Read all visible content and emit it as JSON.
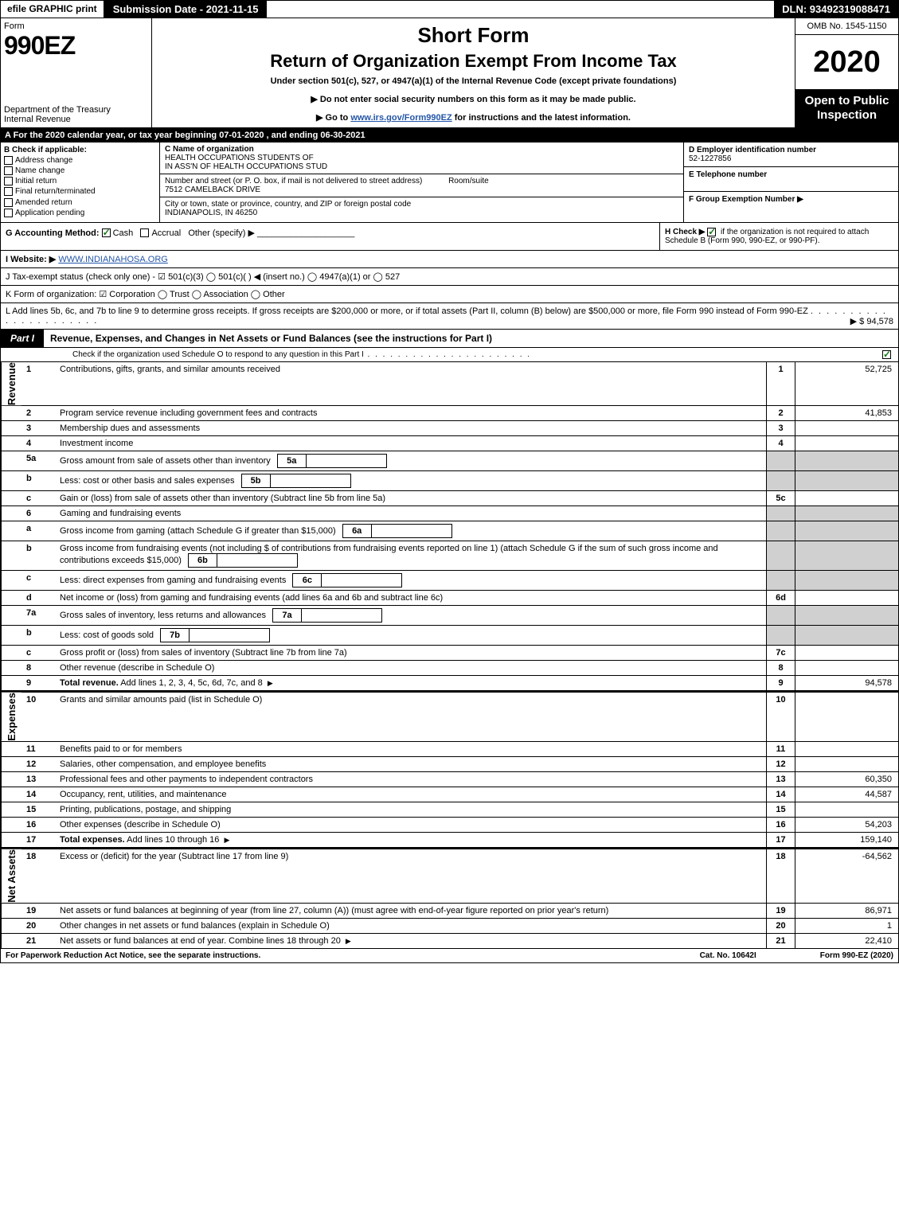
{
  "top": {
    "print": "efile GRAPHIC print",
    "sub_date": "Submission Date - 2021-11-15",
    "dln": "DLN: 93492319088471"
  },
  "header": {
    "form_word": "Form",
    "form_num": "990EZ",
    "dept": "Department of the Treasury",
    "irs": "Internal Revenue",
    "short": "Short Form",
    "title": "Return of Organization Exempt From Income Tax",
    "subtitle": "Under section 501(c), 527, or 4947(a)(1) of the Internal Revenue Code (except private foundations)",
    "instr1": "▶ Do not enter social security numbers on this form as it may be made public.",
    "instr2_pre": "▶ Go to ",
    "instr2_link": "www.irs.gov/Form990EZ",
    "instr2_post": " for instructions and the latest information.",
    "omb": "OMB No. 1545-1150",
    "year": "2020",
    "open": "Open to Public Inspection"
  },
  "rowA": "A   For the 2020 calendar year, or tax year beginning 07-01-2020 , and ending 06-30-2021",
  "colB": {
    "head": "B  Check if applicable:",
    "opts": [
      "Address change",
      "Name change",
      "Initial return",
      "Final return/terminated",
      "Amended return",
      "Application pending"
    ]
  },
  "colC": {
    "name_label": "C Name of organization",
    "name1": "HEALTH OCCUPATIONS STUDENTS OF",
    "name2": "IN ASS'N OF HEALTH OCCUPATIONS STUD",
    "addr_label": "Number and street (or P. O. box, if mail is not delivered to street address)",
    "room": "Room/suite",
    "addr": "7512 CAMELBACK DRIVE",
    "city_label": "City or town, state or province, country, and ZIP or foreign postal code",
    "city": "INDIANAPOLIS, IN   46250"
  },
  "colDEF": {
    "d_label": "D Employer identification number",
    "d_val": "52-1227856",
    "e_label": "E Telephone number",
    "f_label": "F Group Exemption Number   ▶"
  },
  "rowG": {
    "g": "G Accounting Method:",
    "cash": "Cash",
    "accrual": "Accrual",
    "other": "Other (specify) ▶",
    "h": "H   Check ▶",
    "h_text": "if the organization is not required to attach Schedule B (Form 990, 990-EZ, or 990-PF)."
  },
  "rowI": {
    "label": "I Website: ▶",
    "val": "WWW.INDIANAHOSA.ORG"
  },
  "rowJ": "J Tax-exempt status (check only one) -  ☑ 501(c)(3)  ◯ 501(c)(  ) ◀ (insert no.)  ◯ 4947(a)(1) or  ◯ 527",
  "rowK": "K Form of organization:   ☑ Corporation   ◯ Trust   ◯ Association   ◯ Other",
  "rowL": {
    "text": "L Add lines 5b, 6c, and 7b to line 9 to determine gross receipts. If gross receipts are $200,000 or more, or if total assets (Part II, column (B) below) are $500,000 or more, file Form 990 instead of Form 990-EZ",
    "val": "▶ $ 94,578"
  },
  "part1": {
    "tag": "Part I",
    "title": "Revenue, Expenses, and Changes in Net Assets or Fund Balances (see the instructions for Part I)",
    "sub": "Check if the organization used Schedule O to respond to any question in this Part I"
  },
  "sides": {
    "rev": "Revenue",
    "exp": "Expenses",
    "net": "Net Assets"
  },
  "lines": [
    {
      "n": "1",
      "d": "Contributions, gifts, grants, and similar amounts received",
      "r": "1",
      "a": "52,725"
    },
    {
      "n": "2",
      "d": "Program service revenue including government fees and contracts",
      "r": "2",
      "a": "41,853"
    },
    {
      "n": "3",
      "d": "Membership dues and assessments",
      "r": "3",
      "a": ""
    },
    {
      "n": "4",
      "d": "Investment income",
      "r": "4",
      "a": ""
    },
    {
      "n": "5a",
      "d": "Gross amount from sale of assets other than inventory",
      "ib": "5a",
      "grey": true
    },
    {
      "n": "b",
      "d": "Less: cost or other basis and sales expenses",
      "ib": "5b",
      "grey": true
    },
    {
      "n": "c",
      "d": "Gain or (loss) from sale of assets other than inventory (Subtract line 5b from line 5a)",
      "r": "5c",
      "a": ""
    },
    {
      "n": "6",
      "d": "Gaming and fundraising events",
      "grey": true
    },
    {
      "n": "a",
      "d": "Gross income from gaming (attach Schedule G if greater than $15,000)",
      "ib": "6a",
      "grey": true
    },
    {
      "n": "b",
      "d": "Gross income from fundraising events (not including $                       of contributions from fundraising events reported on line 1) (attach Schedule G if the sum of such gross income and contributions exceeds $15,000)",
      "ib": "6b",
      "grey": true
    },
    {
      "n": "c",
      "d": "Less: direct expenses from gaming and fundraising events",
      "ib": "6c",
      "grey": true
    },
    {
      "n": "d",
      "d": "Net income or (loss) from gaming and fundraising events (add lines 6a and 6b and subtract line 6c)",
      "r": "6d",
      "a": ""
    },
    {
      "n": "7a",
      "d": "Gross sales of inventory, less returns and allowances",
      "ib": "7a",
      "grey": true
    },
    {
      "n": "b",
      "d": "Less: cost of goods sold",
      "ib": "7b",
      "grey": true
    },
    {
      "n": "c",
      "d": "Gross profit or (loss) from sales of inventory (Subtract line 7b from line 7a)",
      "r": "7c",
      "a": ""
    },
    {
      "n": "8",
      "d": "Other revenue (describe in Schedule O)",
      "r": "8",
      "a": ""
    },
    {
      "n": "9",
      "d": "Total revenue. Add lines 1, 2, 3, 4, 5c, 6d, 7c, and 8",
      "r": "9",
      "a": "94,578",
      "bold": true,
      "arrow": true
    }
  ],
  "exp_lines": [
    {
      "n": "10",
      "d": "Grants and similar amounts paid (list in Schedule O)",
      "r": "10",
      "a": ""
    },
    {
      "n": "11",
      "d": "Benefits paid to or for members",
      "r": "11",
      "a": ""
    },
    {
      "n": "12",
      "d": "Salaries, other compensation, and employee benefits",
      "r": "12",
      "a": ""
    },
    {
      "n": "13",
      "d": "Professional fees and other payments to independent contractors",
      "r": "13",
      "a": "60,350"
    },
    {
      "n": "14",
      "d": "Occupancy, rent, utilities, and maintenance",
      "r": "14",
      "a": "44,587"
    },
    {
      "n": "15",
      "d": "Printing, publications, postage, and shipping",
      "r": "15",
      "a": ""
    },
    {
      "n": "16",
      "d": "Other expenses (describe in Schedule O)",
      "r": "16",
      "a": "54,203"
    },
    {
      "n": "17",
      "d": "Total expenses. Add lines 10 through 16",
      "r": "17",
      "a": "159,140",
      "bold": true,
      "arrow": true
    }
  ],
  "net_lines": [
    {
      "n": "18",
      "d": "Excess or (deficit) for the year (Subtract line 17 from line 9)",
      "r": "18",
      "a": "-64,562"
    },
    {
      "n": "19",
      "d": "Net assets or fund balances at beginning of year (from line 27, column (A)) (must agree with end-of-year figure reported on prior year's return)",
      "r": "19",
      "a": "86,971"
    },
    {
      "n": "20",
      "d": "Other changes in net assets or fund balances (explain in Schedule O)",
      "r": "20",
      "a": "1"
    },
    {
      "n": "21",
      "d": "Net assets or fund balances at end of year. Combine lines 18 through 20",
      "r": "21",
      "a": "22,410",
      "arrow": true
    }
  ],
  "footer": {
    "left": "For Paperwork Reduction Act Notice, see the separate instructions.",
    "mid": "Cat. No. 10642I",
    "right": "Form 990-EZ (2020)"
  }
}
